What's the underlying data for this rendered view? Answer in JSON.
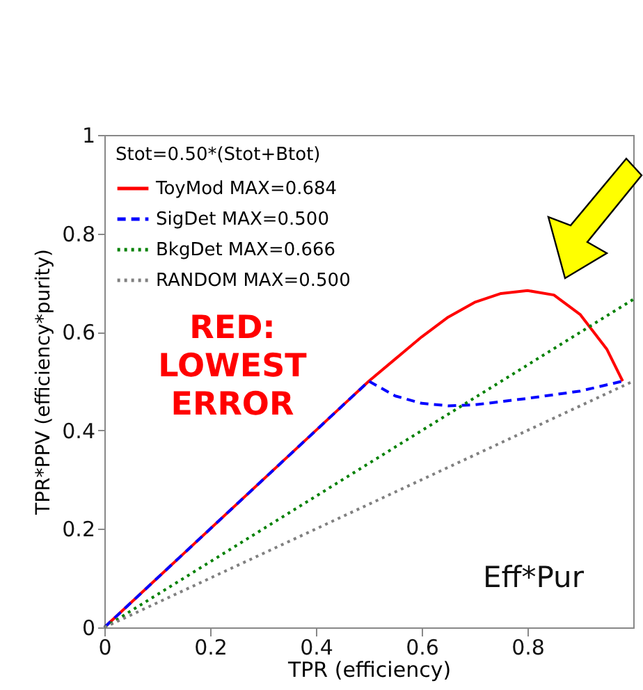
{
  "chart_data": {
    "type": "line",
    "xlabel": "TPR (efficiency)",
    "ylabel": "TPR*PPV (efficiency*purity)",
    "legend_title": "Stot=0.50*(Stot+Btot)",
    "legend": "top left",
    "grid": false,
    "marker": "none",
    "xlim": [
      0,
      1
    ],
    "xticks": [
      0,
      0.2,
      0.4,
      0.6,
      0.8
    ],
    "ylim": [
      0,
      1
    ],
    "yticks": [
      0,
      0.2,
      0.4,
      0.6,
      0.8,
      1
    ],
    "annotations": [
      "RED:\nLOWEST\nERROR",
      "Eff*Pur"
    ],
    "series": [
      {
        "name": "ToyMod MAX=0.684",
        "color": "#ff0000",
        "line_style": "solid",
        "x": [
          0,
          0.45,
          0.5,
          0.55,
          0.6,
          0.65,
          0.7,
          0.75,
          0.8,
          0.85,
          0.9,
          0.95,
          0.98
        ],
        "values": [
          0,
          0.45,
          0.5,
          0.545,
          0.59,
          0.63,
          0.66,
          0.678,
          0.684,
          0.675,
          0.635,
          0.565,
          0.5
        ]
      },
      {
        "name": "SigDet MAX=0.500",
        "color": "#0000ff",
        "line_style": "dashed",
        "x": [
          0,
          0.5,
          0.55,
          0.6,
          0.65,
          0.7,
          0.8,
          0.9,
          0.98
        ],
        "values": [
          0,
          0.5,
          0.47,
          0.455,
          0.45,
          0.452,
          0.465,
          0.48,
          0.5
        ]
      },
      {
        "name": "BkgDet MAX=0.666",
        "color": "#008000",
        "line_style": "dotted",
        "x": [
          0,
          1
        ],
        "values": [
          0,
          0.666
        ]
      },
      {
        "name": "RANDOM MAX=0.500",
        "color": "#808080",
        "line_style": "dotted",
        "x": [
          0,
          1
        ],
        "values": [
          0,
          0.5
        ]
      }
    ]
  }
}
